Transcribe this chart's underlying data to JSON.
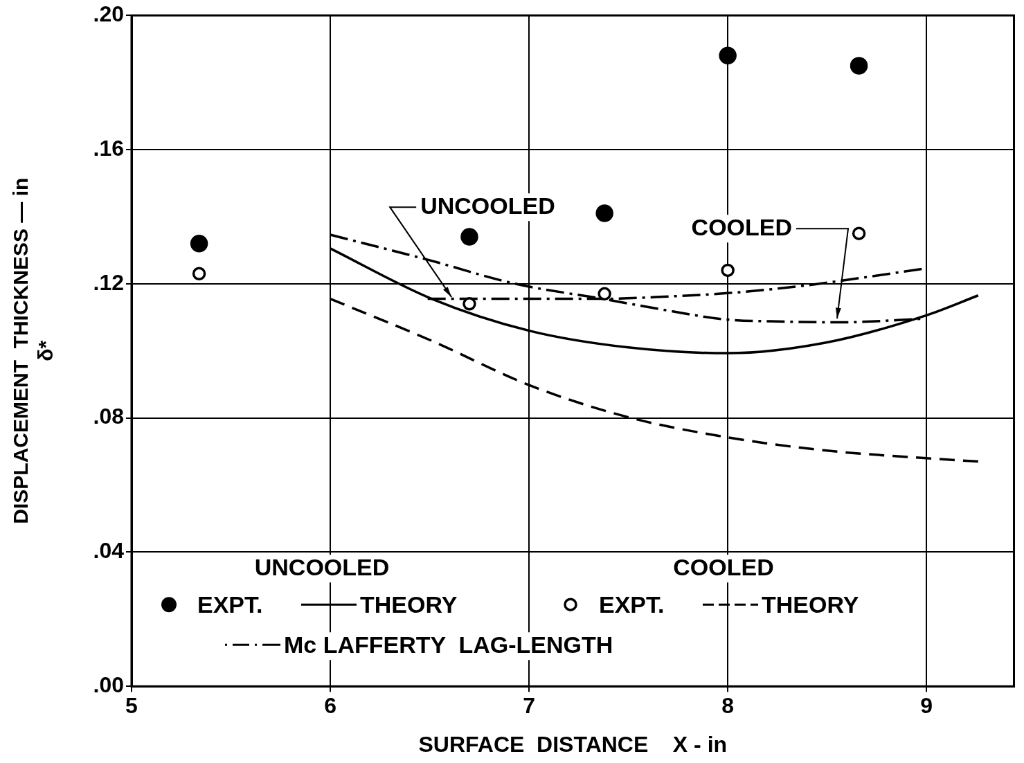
{
  "chart_data": {
    "type": "line",
    "xlabel": "SURFACE  DISTANCE    X - in",
    "ylabel": "DISPLACEMENT  THICKNESS — in\nδ*",
    "xlim": [
      5,
      9.44
    ],
    "xticks": [
      5,
      6,
      7,
      8,
      9
    ],
    "ylim": [
      0,
      0.2
    ],
    "yticks": [
      {
        "value": 0,
        "label": ".00"
      },
      {
        "value": 0.04,
        "label": ".04"
      },
      {
        "value": 0.08,
        "label": ".08"
      },
      {
        "value": 0.12,
        "label": ".12"
      },
      {
        "value": 0.16,
        "label": ".16"
      },
      {
        "value": 0.2,
        "label": ".20"
      }
    ],
    "grid": true,
    "legend": "bottom",
    "series": [
      {
        "name": "EXPT.",
        "type": "scatter",
        "marker": "circle",
        "color": "#000000",
        "x": [
          5.34,
          6.7,
          7.38,
          8.0,
          8.66
        ],
        "values": [
          0.132,
          0.134,
          0.141,
          0.188,
          0.185
        ]
      },
      {
        "name": "THEORY",
        "line_style": "solid",
        "color": "#000000",
        "x": [
          6.0,
          6.51,
          7.0,
          7.5,
          8.0,
          8.49,
          9.0,
          9.26
        ],
        "values": [
          0.1305,
          0.1155,
          0.106,
          0.101,
          0.0993,
          0.1024,
          0.1106,
          0.1165
        ]
      },
      {
        "name": "EXPT.",
        "type": "scatter",
        "marker": "circle-open",
        "color": "#000000",
        "x": [
          5.34,
          6.7,
          7.38,
          8.0,
          8.66
        ],
        "values": [
          0.123,
          0.114,
          0.117,
          0.124,
          0.135
        ]
      },
      {
        "name": "THEORY",
        "line_style": "dashed",
        "color": "#000000",
        "x": [
          6.0,
          6.51,
          7.0,
          7.5,
          8.0,
          8.49,
          9.0,
          9.26
        ],
        "values": [
          0.1155,
          0.103,
          0.0898,
          0.0802,
          0.0742,
          0.0703,
          0.068,
          0.067
        ]
      },
      {
        "name": "Mc LAFFERTY  LAG-LENGTH",
        "line_style": "dashdot",
        "color": "#000000",
        "x": [
          6.49,
          7.0,
          7.37,
          7.7,
          8.0,
          8.38,
          8.7,
          9.0
        ],
        "values": [
          0.1155,
          0.1155,
          0.1155,
          0.1162,
          0.1172,
          0.1194,
          0.122,
          0.1246
        ]
      },
      {
        "line_style": "dashdot",
        "color": "#000000",
        "x": [
          6.0,
          6.5,
          6.93,
          7.37,
          7.7,
          7.98,
          8.3,
          8.56,
          9.0
        ],
        "values": [
          0.1346,
          0.127,
          0.12,
          0.1155,
          0.112,
          0.1094,
          0.1087,
          0.1085,
          0.1096
        ]
      }
    ],
    "annotations": [
      "UNCOOLED",
      "COOLED",
      {
        "text": "UNCOOLED",
        "x": 6.61,
        "y": 0.116
      },
      {
        "text": "COOLED",
        "x": 8.55,
        "y": 0.1096
      }
    ]
  }
}
